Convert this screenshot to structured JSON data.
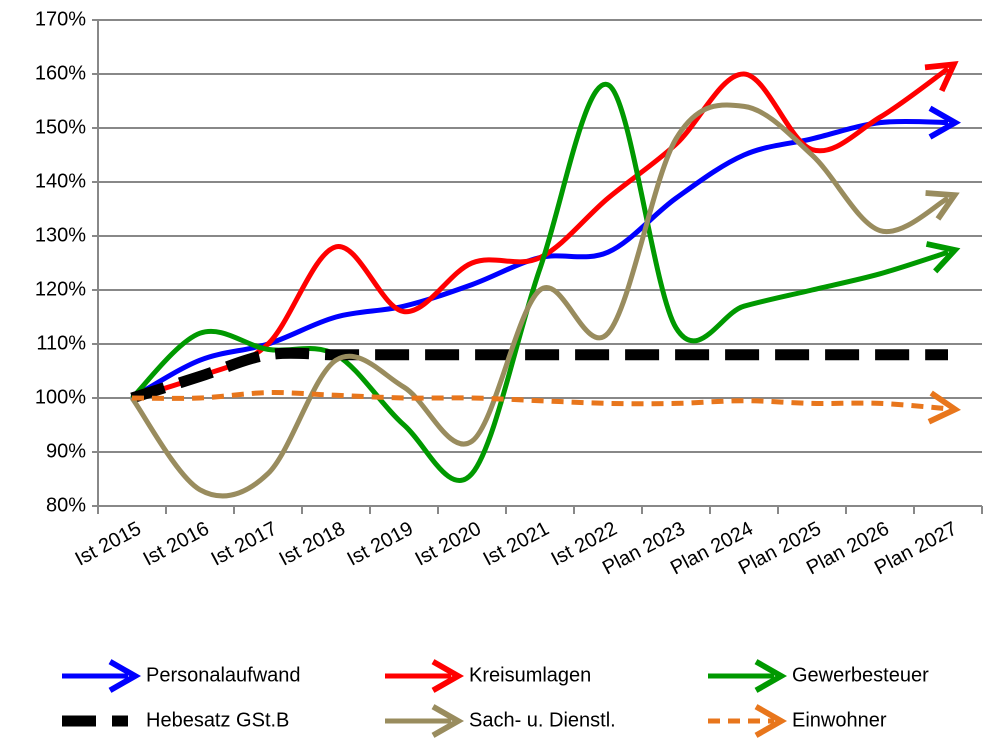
{
  "chart_data": {
    "type": "line",
    "categories": [
      "Ist 2015",
      "Ist 2016",
      "Ist 2017",
      "Ist 2018",
      "Ist 2019",
      "Ist 2020",
      "Ist 2021",
      "Ist 2022",
      "Plan 2023",
      "Plan 2024",
      "Plan 2025",
      "Plan 2026",
      "Plan 2027"
    ],
    "series": [
      {
        "name": "Personalaufwand",
        "color": "#0000ff",
        "arrow": true,
        "dashed": false,
        "values": [
          100,
          107,
          110,
          115,
          117,
          121,
          126,
          127,
          137,
          145,
          148,
          151,
          151
        ]
      },
      {
        "name": "Kreisumlagen",
        "color": "#ff0000",
        "arrow": true,
        "dashed": false,
        "values": [
          100,
          104,
          110,
          128,
          116,
          125,
          126,
          137,
          147,
          160,
          146,
          152,
          161
        ]
      },
      {
        "name": "Gewerbesteuer",
        "color": "#009900",
        "arrow": true,
        "dashed": false,
        "values": [
          100,
          112,
          109,
          108,
          95,
          86,
          124,
          158,
          113,
          117,
          120,
          123,
          127
        ]
      },
      {
        "name": "Hebesatz GSt.B",
        "color": "#000000",
        "arrow": false,
        "dashed": true,
        "values": [
          100,
          104,
          108,
          108,
          108,
          108,
          108,
          108,
          108,
          108,
          108,
          108,
          108
        ]
      },
      {
        "name": "Sach- u. Dienstl.",
        "color": "#998c5e",
        "arrow": true,
        "dashed": false,
        "values": [
          100,
          83,
          86,
          107,
          102,
          92,
          120,
          112,
          148,
          154,
          145,
          131,
          137
        ]
      },
      {
        "name": "Einwohner",
        "color": "#e8761c",
        "arrow": true,
        "dashed": true,
        "values": [
          100,
          100,
          101,
          100.5,
          100,
          100,
          99.5,
          99,
          99,
          99.5,
          99,
          99,
          98
        ]
      }
    ],
    "ylim": [
      80,
      170
    ],
    "yticks": [
      {
        "value": 80,
        "label": "80%"
      },
      {
        "value": 90,
        "label": "90%"
      },
      {
        "value": 100,
        "label": "100%"
      },
      {
        "value": 110,
        "label": "110%"
      },
      {
        "value": 120,
        "label": "120%"
      },
      {
        "value": 130,
        "label": "130%"
      },
      {
        "value": 140,
        "label": "140%"
      },
      {
        "value": 150,
        "label": "150%"
      },
      {
        "value": 160,
        "label": "160%"
      },
      {
        "value": 170,
        "label": "170%"
      }
    ],
    "grid": true,
    "legend": "bottom"
  }
}
